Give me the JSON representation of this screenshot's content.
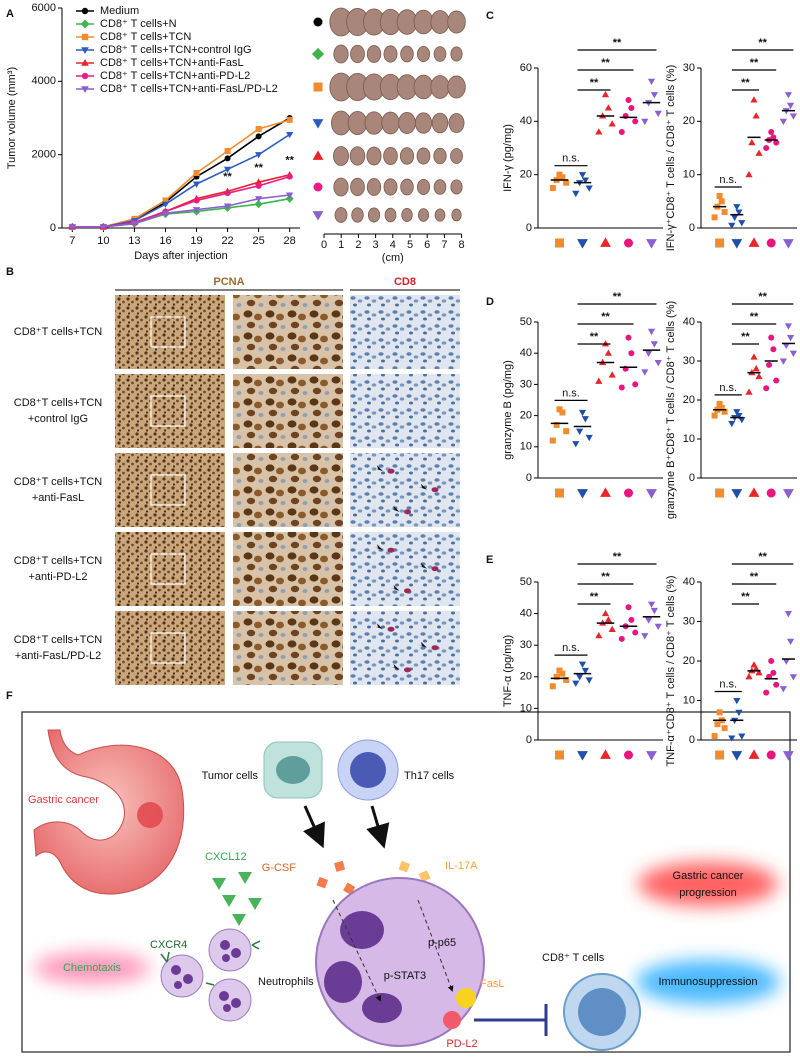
{
  "figure": {
    "panel_labels": [
      "A",
      "B",
      "C",
      "D",
      "E",
      "F"
    ],
    "tumor_photos": {
      "scale_ticks": [
        0,
        1,
        2,
        3,
        4,
        5,
        6,
        7,
        8
      ],
      "scale_label": "(cm)"
    },
    "panel_b": {
      "headers": [
        "PCNA",
        "CD8"
      ],
      "rows": [
        [
          "CD8⁺T cells+TCN"
        ],
        [
          "CD8⁺T cells+TCN",
          "+control IgG"
        ],
        [
          "CD8⁺T cells+TCN",
          "+anti-FasL"
        ],
        [
          "CD8⁺T cells+TCN",
          "+anti-PD-L2"
        ],
        [
          "CD8⁺T cells+TCN",
          "+anti-FasL/PD-L2"
        ]
      ]
    },
    "panel_f": {
      "gastric_cancer": "Gastric cancer",
      "cxcl12": "CXCL12",
      "cxcr4": "CXCR4",
      "chemotaxis": "Chemotaxis",
      "neutrophils": "Neutrophils",
      "tumor_cells": "Tumor cells",
      "th17_cells": "Th17 cells",
      "gcsf": "G-CSF",
      "il17a": "IL-17A",
      "pp65": "p-p65",
      "pstat3": "p-STAT3",
      "fasl": "FasL",
      "pdl2": "PD-L2",
      "cd8_t_cells": "CD8⁺ T cells",
      "progression": [
        "Gastric cancer",
        "progression"
      ],
      "immunosuppression": "Immunosuppression"
    }
  },
  "chart_data": [
    {
      "type": "line",
      "xlabel": "Days after injection",
      "ylabel": "Tumor volume (mm³)",
      "x": [
        7,
        10,
        13,
        16,
        19,
        22,
        25,
        28
      ],
      "xlim": [
        6,
        29
      ],
      "xticks": [
        7,
        10,
        13,
        16,
        19,
        22,
        25,
        28
      ],
      "ylim": [
        0,
        6000
      ],
      "yticks": [
        0,
        2000,
        4000,
        6000
      ],
      "legend": "upper left",
      "series": [
        {
          "name": "Medium",
          "color": "#000000",
          "marker": "circle",
          "values": [
            30,
            30,
            200,
            700,
            1400,
            1900,
            2500,
            3000
          ]
        },
        {
          "name": "CD8⁺ T cells+N",
          "color": "#3db54a",
          "marker": "diamond",
          "values": [
            30,
            30,
            120,
            380,
            450,
            550,
            650,
            800
          ]
        },
        {
          "name": "CD8⁺ T cells+TCN",
          "color": "#f28a2e",
          "marker": "square",
          "values": [
            30,
            30,
            250,
            750,
            1500,
            2100,
            2700,
            2950
          ]
        },
        {
          "name": "CD8⁺ T cells+TCN+control IgG",
          "color": "#2b5cc4",
          "marker": "triangle-down",
          "values": [
            30,
            30,
            200,
            650,
            1200,
            1600,
            2000,
            2550
          ]
        },
        {
          "name": "CD8⁺ T cells+TCN+anti-FasL",
          "color": "#e8262a",
          "marker": "triangle",
          "values": [
            30,
            30,
            150,
            450,
            800,
            1000,
            1250,
            1450
          ]
        },
        {
          "name": "CD8⁺ T cells+TCN+anti-PD-L2",
          "color": "#ec1a86",
          "marker": "circle",
          "values": [
            30,
            30,
            150,
            450,
            750,
            950,
            1150,
            1400
          ]
        },
        {
          "name": "CD8⁺ T cells+TCN+anti-FasL/PD-L2",
          "color": "#8b5fd1",
          "marker": "triangle-down",
          "values": [
            30,
            30,
            120,
            400,
            500,
            600,
            800,
            900
          ]
        }
      ],
      "annotations": [
        {
          "x": 22,
          "text": "**"
        },
        {
          "x": 25,
          "text": "**"
        },
        {
          "x": 28,
          "text": "**"
        }
      ]
    },
    {
      "type": "dot",
      "ylabel": "IFN-γ (pg/mg)",
      "ylim": [
        0,
        60
      ],
      "yticks": [
        0,
        20,
        40,
        60
      ],
      "groups": [
        {
          "color": "#f28a2e",
          "marker": "square",
          "values": [
            15,
            17,
            18,
            19,
            20
          ],
          "mean": 18
        },
        {
          "color": "#1f4fa8",
          "marker": "triangle-down",
          "values": [
            13,
            15,
            17,
            18,
            20
          ],
          "mean": 17
        },
        {
          "color": "#e8262a",
          "marker": "triangle",
          "values": [
            36,
            39,
            42,
            45,
            50
          ],
          "mean": 42
        },
        {
          "color": "#e8157f",
          "marker": "circle",
          "values": [
            36,
            40,
            42,
            45,
            48
          ],
          "mean": 41.5
        },
        {
          "color": "#8b5fd1",
          "marker": "triangle-down",
          "values": [
            40,
            43,
            47,
            50,
            55
          ],
          "mean": 47
        }
      ],
      "annotations": [
        "n.s.",
        "**",
        "**",
        "**"
      ]
    },
    {
      "type": "dot",
      "ylabel": "IFN-γ⁺CD8⁺ T cells / CD8⁺ T cells (%)",
      "ylim": [
        0,
        30
      ],
      "yticks": [
        0,
        10,
        20,
        30
      ],
      "groups": [
        {
          "color": "#f28a2e",
          "marker": "square",
          "values": [
            2,
            3,
            4,
            5,
            6
          ],
          "mean": 4
        },
        {
          "color": "#1f4fa8",
          "marker": "triangle-down",
          "values": [
            0.5,
            1,
            2,
            3,
            4
          ],
          "mean": 2.5
        },
        {
          "color": "#e8262a",
          "marker": "triangle",
          "values": [
            10,
            14,
            16,
            21,
            24
          ],
          "mean": 17
        },
        {
          "color": "#e8157f",
          "marker": "circle",
          "values": [
            15,
            16,
            16.5,
            17,
            18
          ],
          "mean": 16.5
        },
        {
          "color": "#8b5fd1",
          "marker": "triangle-down",
          "values": [
            20,
            21,
            22,
            23,
            25
          ],
          "mean": 22
        }
      ],
      "annotations": [
        "n.s.",
        "**",
        "**",
        "**"
      ]
    },
    {
      "type": "dot",
      "ylabel": "granzyme B (pg/mg)",
      "ylim": [
        0,
        50
      ],
      "yticks": [
        0,
        10,
        20,
        30,
        40,
        50
      ],
      "groups": [
        {
          "color": "#f28a2e",
          "marker": "square",
          "values": [
            12,
            15,
            17,
            21,
            22
          ],
          "mean": 17.5
        },
        {
          "color": "#1f4fa8",
          "marker": "triangle-down",
          "values": [
            11,
            13,
            15,
            19,
            21
          ],
          "mean": 16.5
        },
        {
          "color": "#e8262a",
          "marker": "triangle",
          "values": [
            31,
            33,
            37,
            40,
            43
          ],
          "mean": 37
        },
        {
          "color": "#e8157f",
          "marker": "circle",
          "values": [
            29,
            30,
            35,
            40,
            45
          ],
          "mean": 35.5
        },
        {
          "color": "#8b5fd1",
          "marker": "triangle-down",
          "values": [
            34,
            37,
            40,
            43,
            47
          ],
          "mean": 41
        }
      ],
      "annotations": [
        "n.s.",
        "**",
        "**",
        "**"
      ]
    },
    {
      "type": "dot",
      "ylabel": "granzyme B⁺CD8⁺ T cells / CD8⁺ T cells (%)",
      "ylim": [
        0,
        40
      ],
      "yticks": [
        0,
        10,
        20,
        30,
        40
      ],
      "groups": [
        {
          "color": "#f28a2e",
          "marker": "square",
          "values": [
            16,
            17,
            17.5,
            18,
            19
          ],
          "mean": 17.5
        },
        {
          "color": "#1f4fa8",
          "marker": "triangle-down",
          "values": [
            14,
            15,
            15.5,
            16,
            17
          ],
          "mean": 15.5
        },
        {
          "color": "#e8262a",
          "marker": "triangle",
          "values": [
            22,
            26,
            27,
            28,
            31
          ],
          "mean": 27
        },
        {
          "color": "#e8157f",
          "marker": "circle",
          "values": [
            23,
            25,
            29,
            33,
            36
          ],
          "mean": 30
        },
        {
          "color": "#8b5fd1",
          "marker": "triangle-down",
          "values": [
            30,
            32,
            34,
            36,
            39
          ],
          "mean": 34.5
        }
      ],
      "annotations": [
        "n.s.",
        "**",
        "**",
        "**"
      ]
    },
    {
      "type": "dot",
      "ylabel": "TNF-α  (pg/mg)",
      "ylim": [
        0,
        50
      ],
      "yticks": [
        0,
        10,
        20,
        30,
        40,
        50
      ],
      "groups": [
        {
          "color": "#f28a2e",
          "marker": "square",
          "values": [
            17,
            19,
            20,
            21,
            22
          ],
          "mean": 19.5
        },
        {
          "color": "#1f4fa8",
          "marker": "triangle-down",
          "values": [
            18,
            19,
            20,
            22,
            24
          ],
          "mean": 21
        },
        {
          "color": "#e8262a",
          "marker": "triangle",
          "values": [
            33,
            35,
            37,
            38,
            40
          ],
          "mean": 37
        },
        {
          "color": "#e8157f",
          "marker": "circle",
          "values": [
            32,
            34,
            36,
            38,
            42
          ],
          "mean": 36
        },
        {
          "color": "#8b5fd1",
          "marker": "triangle-down",
          "values": [
            33,
            36,
            38,
            41,
            43
          ],
          "mean": 39
        }
      ],
      "annotations": [
        "n.s.",
        "**",
        "**",
        "**"
      ]
    },
    {
      "type": "dot",
      "ylabel": "TNF-α⁺CD8⁺ T cells / CD8⁺ T cells (%)",
      "ylim": [
        0,
        40
      ],
      "yticks": [
        0,
        10,
        20,
        30,
        40
      ],
      "groups": [
        {
          "color": "#f28a2e",
          "marker": "square",
          "values": [
            1,
            3,
            4,
            5,
            7
          ],
          "mean": 5
        },
        {
          "color": "#1f4fa8",
          "marker": "triangle-down",
          "values": [
            0.5,
            1,
            5,
            7,
            10
          ],
          "mean": 5
        },
        {
          "color": "#e8262a",
          "marker": "triangle",
          "values": [
            16,
            17,
            17.5,
            18,
            19
          ],
          "mean": 17.5
        },
        {
          "color": "#e8157f",
          "marker": "circle",
          "values": [
            12,
            14,
            16,
            17,
            20
          ],
          "mean": 15.5
        },
        {
          "color": "#8b5fd1",
          "marker": "triangle-down",
          "values": [
            13,
            16,
            20,
            25,
            32
          ],
          "mean": 20.5
        }
      ],
      "annotations": [
        "n.s.",
        "**",
        "**",
        "**"
      ]
    }
  ]
}
